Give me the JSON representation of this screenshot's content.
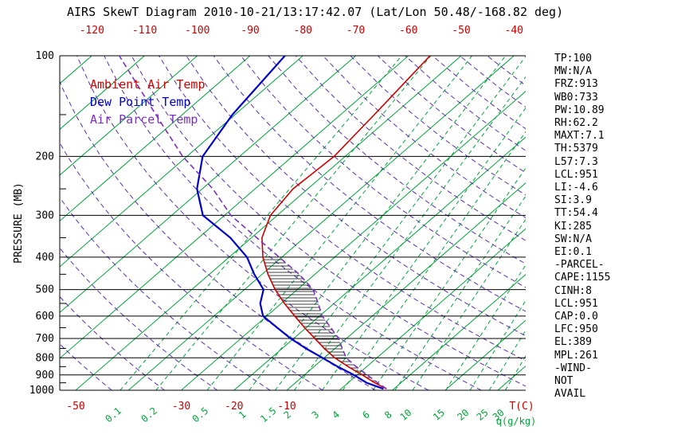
{
  "chart_data": {
    "type": "line",
    "variant": "skew-t-log-p",
    "title": "AIRS SkewT Diagram 2010-10-21/13:17:42.07 (Lat/Lon 50.48/-168.82 deg)",
    "x_axis": {
      "label": "T(C)",
      "units": "C",
      "top_tick_labels": [
        -120,
        -110,
        -100,
        -90,
        -80,
        -70,
        -60,
        -50,
        -40
      ],
      "bottom_tick_labels": [
        -50,
        -30,
        -20,
        -10
      ]
    },
    "y_axis": {
      "label": "PRESSURE (MB)",
      "scale": "log",
      "tick_labels": [
        100,
        200,
        300,
        400,
        500,
        600,
        700,
        800,
        900,
        1000
      ]
    },
    "mixing_ratio_axis": {
      "label": "q(g/kg)",
      "values": [
        0.1,
        0.2,
        0.5,
        1,
        1.5,
        2,
        3,
        4,
        6,
        8,
        10,
        15,
        20,
        25,
        30
      ]
    },
    "isotherm_step_c": 10,
    "dry_adiabats": {
      "theta_min_k": 220,
      "theta_max_k": 440,
      "theta_step_k": 10
    },
    "series": [
      {
        "name": "Ambient Air Temp",
        "color": "#CC0000",
        "dashed": false,
        "points": [
          [
            990,
            8.6
          ],
          [
            950,
            5
          ],
          [
            900,
            1
          ],
          [
            850,
            -3.5
          ],
          [
            800,
            -8
          ],
          [
            750,
            -12
          ],
          [
            700,
            -16
          ],
          [
            650,
            -20.3
          ],
          [
            600,
            -24.7
          ],
          [
            550,
            -29.4
          ],
          [
            500,
            -34.2
          ],
          [
            450,
            -38.9
          ],
          [
            400,
            -43.6
          ],
          [
            350,
            -48
          ],
          [
            300,
            -51.3
          ],
          [
            250,
            -52.8
          ],
          [
            200,
            -52.1
          ],
          [
            150,
            -53.6
          ],
          [
            100,
            -55.9
          ]
        ]
      },
      {
        "name": "Dew Point Temp",
        "color": "#0000CC",
        "dashed": false,
        "points": [
          [
            990,
            8
          ],
          [
            950,
            3.5
          ],
          [
            900,
            -0.6
          ],
          [
            850,
            -5.5
          ],
          [
            800,
            -10.3
          ],
          [
            750,
            -15.5
          ],
          [
            700,
            -20.6
          ],
          [
            650,
            -25.5
          ],
          [
            600,
            -30.7
          ],
          [
            550,
            -34
          ],
          [
            500,
            -36.4
          ],
          [
            450,
            -41.5
          ],
          [
            400,
            -46.6
          ],
          [
            350,
            -54
          ],
          [
            300,
            -64.1
          ],
          [
            250,
            -71
          ],
          [
            200,
            -77
          ],
          [
            150,
            -80.5
          ],
          [
            100,
            -83.4
          ]
        ]
      },
      {
        "name": "Air Parcel Temp",
        "color": "#7A2FC4",
        "dashed": true,
        "points": [
          [
            990,
            8.6
          ],
          [
            950,
            5.6
          ],
          [
            900,
            1.9
          ],
          [
            850,
            -2
          ],
          [
            800,
            -5.8
          ],
          [
            750,
            -8.6
          ],
          [
            700,
            -11.5
          ],
          [
            650,
            -15.3
          ],
          [
            600,
            -19.5
          ],
          [
            550,
            -23
          ],
          [
            500,
            -27
          ],
          [
            450,
            -33
          ],
          [
            400,
            -40.5
          ],
          [
            350,
            -49
          ],
          [
            300,
            -58.8
          ],
          [
            250,
            -68
          ],
          [
            200,
            -80.8
          ],
          [
            150,
            -95
          ],
          [
            100,
            -114.8
          ]
        ]
      }
    ],
    "cape_hatch_pressure_range": [
      400,
      950
    ],
    "colors": {
      "isotherm": "#00A33A",
      "mixing_ratio": "#00A33A",
      "dry_adiabat": "#5B2FAE",
      "temp_labels": "#CC0000",
      "axis": "#000000"
    }
  },
  "legend": {
    "items": [
      {
        "label": "Ambient Air Temp",
        "color": "#CC0000"
      },
      {
        "label": "Dew Point Temp",
        "color": "#0000CC"
      },
      {
        "label": "Air Parcel Temp",
        "color": "#7A2FC4"
      }
    ]
  },
  "stats": {
    "lines": [
      "TP:100",
      "MW:N/A",
      "FRZ:913",
      "WB0:733",
      "PW:10.89",
      "RH:62.2",
      "MAXT:7.1",
      "TH:5379",
      "L57:7.3",
      "LCL:951",
      "LI:-4.6",
      "SI:3.9",
      "TT:54.4",
      "KI:285",
      "SW:N/A",
      "EI:0.1",
      "-PARCEL-",
      "CAPE:1155",
      "CINH:8",
      "LCL:951",
      "CAP:0.0",
      "LFC:950",
      "EL:389",
      "MPL:261",
      "-WIND-",
      "NOT",
      "AVAIL"
    ]
  }
}
